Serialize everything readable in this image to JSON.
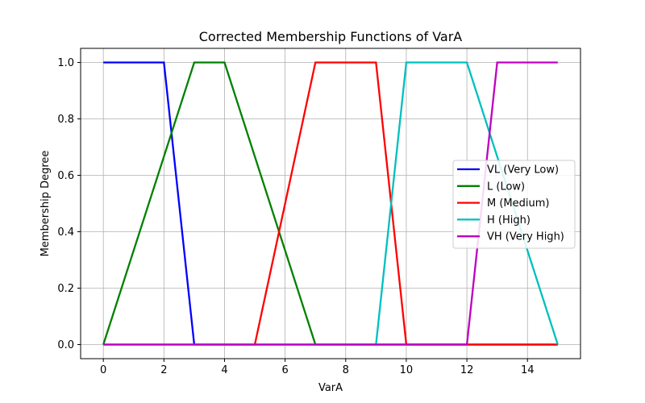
{
  "chart_data": {
    "type": "line",
    "title": "Corrected Membership Functions of VarA",
    "xlabel": "VarA",
    "ylabel": "Membership Degree",
    "xlim": [
      -0.75,
      15.75
    ],
    "ylim": [
      -0.05,
      1.05
    ],
    "xticks": [
      0,
      2,
      4,
      6,
      8,
      10,
      12,
      14
    ],
    "yticks": [
      0.0,
      0.2,
      0.4,
      0.6,
      0.8,
      1.0
    ],
    "xtick_labels": [
      "0",
      "2",
      "4",
      "6",
      "8",
      "10",
      "12",
      "14"
    ],
    "ytick_labels": [
      "0.0",
      "0.2",
      "0.4",
      "0.6",
      "0.8",
      "1.0"
    ],
    "grid": true,
    "legend_position": "center-right",
    "series": [
      {
        "name": "VL (Very Low)",
        "color": "#0000ff",
        "x": [
          0,
          2,
          3,
          15
        ],
        "y": [
          1,
          1,
          0,
          0
        ]
      },
      {
        "name": "L (Low)",
        "color": "#008000",
        "x": [
          0,
          3,
          4,
          7,
          15
        ],
        "y": [
          0,
          1,
          1,
          0,
          0
        ]
      },
      {
        "name": "M (Medium)",
        "color": "#ff0000",
        "x": [
          0,
          5,
          7,
          9,
          10,
          15
        ],
        "y": [
          0,
          0,
          1,
          1,
          0,
          0
        ]
      },
      {
        "name": "H (High)",
        "color": "#00bfbf",
        "x": [
          0,
          9,
          10,
          12,
          15
        ],
        "y": [
          0,
          0,
          1,
          1,
          0
        ]
      },
      {
        "name": "VH (Very High)",
        "color": "#bf00bf",
        "x": [
          0,
          12,
          13,
          15
        ],
        "y": [
          0,
          0,
          1,
          1
        ]
      }
    ]
  }
}
